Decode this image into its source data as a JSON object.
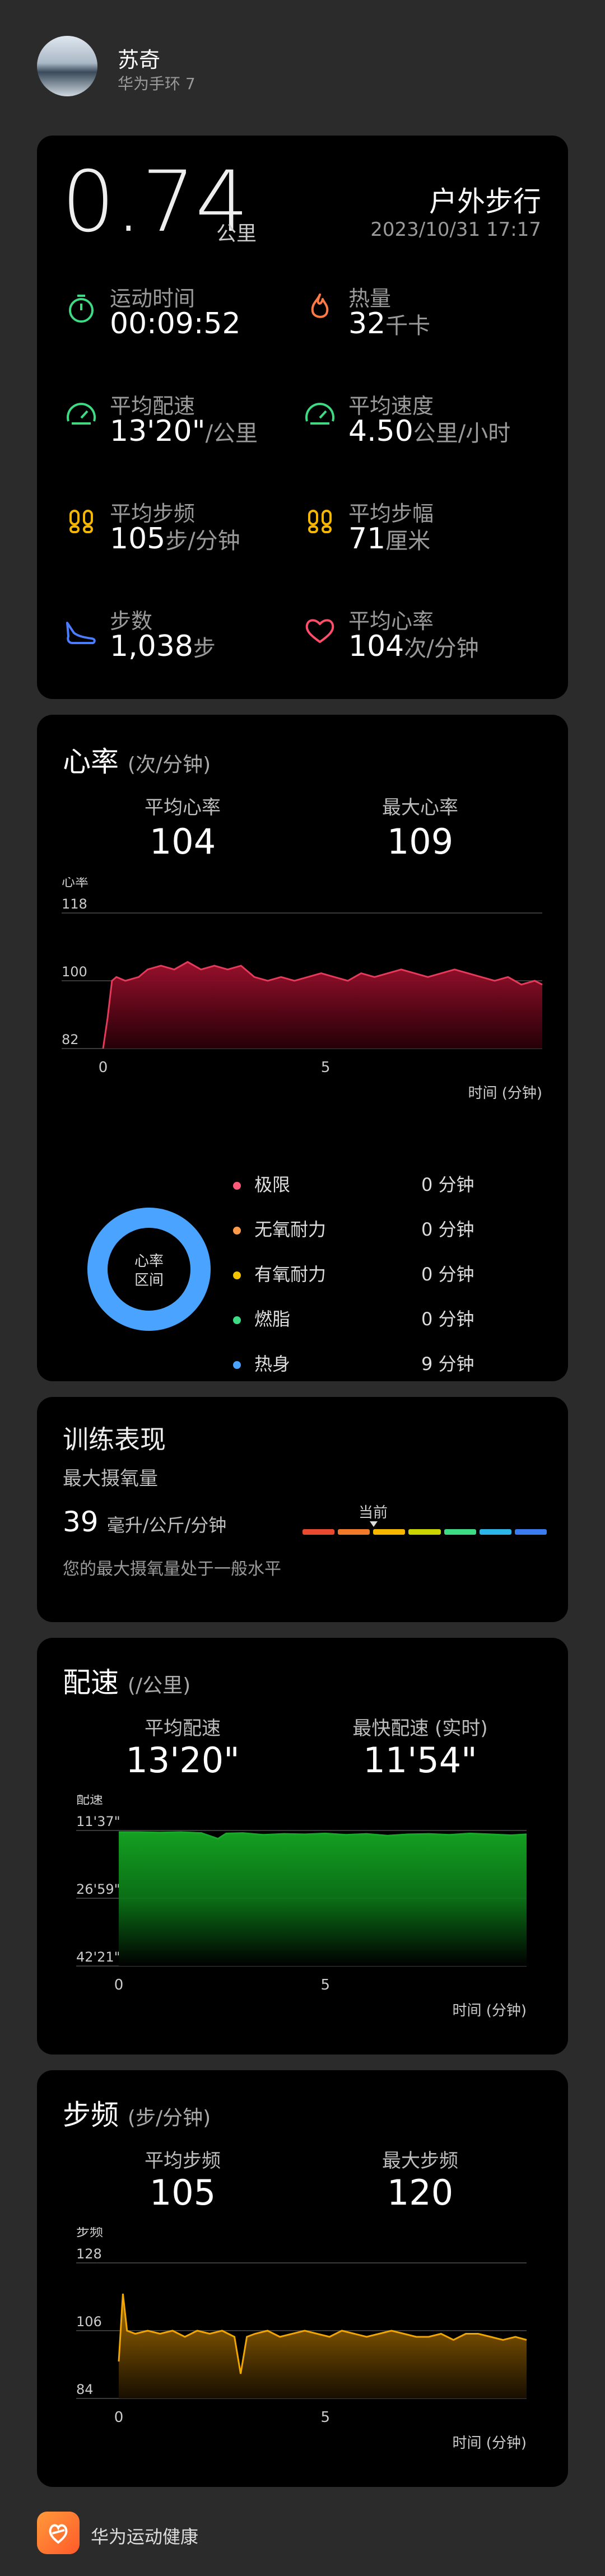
{
  "header": {
    "name": "苏奇",
    "device": "华为手环 7"
  },
  "summary": {
    "distance_value": "0.74",
    "distance_unit": "公里",
    "activity_type": "户外步行",
    "datetime": "2023/10/31 17:17",
    "metrics": [
      {
        "icon": "stopwatch-icon",
        "color": "#3ddc84",
        "label": "运动时间",
        "value": "00:09:52",
        "unit": ""
      },
      {
        "icon": "flame-icon",
        "color": "#ff7a45",
        "label": "热量",
        "value": "32",
        "unit": "千卡"
      },
      {
        "icon": "speedometer-icon",
        "color": "#3ddc84",
        "label": "平均配速",
        "value": "13'20\"",
        "unit": "/公里"
      },
      {
        "icon": "speedometer-icon",
        "color": "#3ddc84",
        "label": "平均速度",
        "value": "4.50",
        "unit": "公里/小时"
      },
      {
        "icon": "footprints-icon",
        "color": "#f5b700",
        "label": "平均步频",
        "value": "105",
        "unit": "步/分钟"
      },
      {
        "icon": "footprints-icon",
        "color": "#f5b700",
        "label": "平均步幅",
        "value": "71",
        "unit": "厘米"
      },
      {
        "icon": "shoe-icon",
        "color": "#4a7dff",
        "label": "步数",
        "value": "1,038",
        "unit": "步"
      },
      {
        "icon": "heart-icon",
        "color": "#ff4d6a",
        "label": "平均心率",
        "value": "104",
        "unit": "次/分钟"
      }
    ]
  },
  "heart_rate": {
    "title": "心率",
    "title_unit": "(次/分钟)",
    "avg_label": "平均心率",
    "avg_value": "104",
    "max_label": "最大心率",
    "max_value": "109",
    "y_axis_label": "心率",
    "x_axis_label": "时间 (分钟)",
    "zone_center": [
      "心率",
      "区间"
    ],
    "zones": [
      {
        "name": "极限",
        "value": "0 分钟",
        "color": "#ff5a7a"
      },
      {
        "name": "无氧耐力",
        "value": "0 分钟",
        "color": "#ff9a4a"
      },
      {
        "name": "有氧耐力",
        "value": "0 分钟",
        "color": "#f5c400"
      },
      {
        "name": "燃脂",
        "value": "0 分钟",
        "color": "#3ddc84"
      },
      {
        "name": "热身",
        "value": "9 分钟",
        "color": "#4aa3ff"
      }
    ]
  },
  "training": {
    "title": "训练表现",
    "subtitle": "最大摄氧量",
    "value": "39",
    "unit": "毫升/公斤/分钟",
    "current_label": "当前",
    "note": "您的最大摄氧量处于一般水平",
    "scale_colors": [
      "#e84a2f",
      "#f07a2a",
      "#f5b700",
      "#c9d400",
      "#3ddc84",
      "#2bb5e8",
      "#3a7cf0"
    ],
    "current_position": 0.3
  },
  "pace": {
    "title": "配速",
    "title_unit": "(/公里)",
    "avg_label": "平均配速",
    "avg_value": "13'20\"",
    "max_label": "最快配速 (实时)",
    "max_value": "11'54\"",
    "y_axis_label": "配速",
    "x_axis_label": "时间 (分钟)"
  },
  "cadence": {
    "title": "步频",
    "title_unit": "(步/分钟)",
    "avg_label": "平均步频",
    "avg_value": "105",
    "max_label": "最大步频",
    "max_value": "120",
    "y_axis_label": "步频",
    "x_axis_label": "时间 (分钟)"
  },
  "footer": {
    "app_name": "华为运动健康"
  },
  "chart_data": [
    {
      "type": "area",
      "name": "heart_rate",
      "ylabel": "心率",
      "xlabel": "时间 (分钟)",
      "yticks": [
        "118",
        "100",
        "82"
      ],
      "ylim": [
        82,
        118
      ],
      "xlim": [
        0,
        9.87
      ],
      "xticks": [
        "0",
        "5"
      ],
      "x": [
        0,
        0.1,
        0.2,
        0.3,
        0.5,
        0.8,
        1.0,
        1.3,
        1.6,
        1.9,
        2.2,
        2.5,
        2.8,
        3.1,
        3.4,
        3.7,
        4.0,
        4.3,
        4.6,
        4.9,
        5.2,
        5.5,
        5.8,
        6.1,
        6.4,
        6.7,
        7.0,
        7.3,
        7.6,
        7.9,
        8.2,
        8.5,
        8.8,
        9.1,
        9.4,
        9.7,
        9.87
      ],
      "y": [
        82,
        90,
        100,
        101,
        100,
        101,
        103,
        104,
        103,
        105,
        103,
        104,
        103,
        104,
        101,
        100,
        101,
        100,
        101,
        102,
        101,
        100,
        102,
        101,
        102,
        103,
        102,
        101,
        102,
        103,
        102,
        101,
        100,
        101,
        99,
        100,
        99
      ],
      "color": "#e63a5a"
    },
    {
      "type": "area",
      "name": "pace",
      "ylabel": "配速",
      "xlabel": "时间 (分钟)",
      "yticks": [
        "11'37\"",
        "26'59\"",
        "42'21\""
      ],
      "ylim": [
        42.35,
        11.62
      ],
      "xlim": [
        0,
        9.87
      ],
      "xticks": [
        "0",
        "5"
      ],
      "x": [
        0,
        0.5,
        1.0,
        1.5,
        2.0,
        2.4,
        2.6,
        3.0,
        3.5,
        4.0,
        4.5,
        5.0,
        5.5,
        6.0,
        6.5,
        7.0,
        7.5,
        8.0,
        8.5,
        9.0,
        9.5,
        9.87
      ],
      "y": [
        12.0,
        12.0,
        12.1,
        12.0,
        12.2,
        13.5,
        12.3,
        12.2,
        12.6,
        12.4,
        12.5,
        12.3,
        12.6,
        12.4,
        12.8,
        12.5,
        12.4,
        12.6,
        12.3,
        12.5,
        12.7,
        12.5
      ],
      "color": "#1aa82a"
    },
    {
      "type": "area",
      "name": "cadence",
      "ylabel": "步频",
      "xlabel": "时间 (分钟)",
      "yticks": [
        "128",
        "106",
        "84"
      ],
      "ylim": [
        84,
        128
      ],
      "xlim": [
        0,
        9.87
      ],
      "xticks": [
        "0",
        "5"
      ],
      "x": [
        0,
        0.1,
        0.2,
        0.4,
        0.7,
        1.0,
        1.3,
        1.6,
        1.9,
        2.2,
        2.5,
        2.8,
        2.95,
        3.1,
        3.3,
        3.6,
        3.9,
        4.2,
        4.5,
        4.8,
        5.1,
        5.4,
        5.7,
        6.0,
        6.3,
        6.6,
        6.9,
        7.2,
        7.5,
        7.8,
        8.1,
        8.4,
        8.7,
        9.0,
        9.3,
        9.6,
        9.87
      ],
      "y": [
        96,
        118,
        106,
        105,
        106,
        105,
        106,
        104,
        106,
        105,
        106,
        104,
        92,
        104,
        105,
        106,
        104,
        105,
        106,
        105,
        104,
        106,
        105,
        104,
        105,
        106,
        105,
        104,
        104,
        105,
        103,
        105,
        105,
        104,
        103,
        104,
        103
      ],
      "color": "#f0a500"
    }
  ]
}
